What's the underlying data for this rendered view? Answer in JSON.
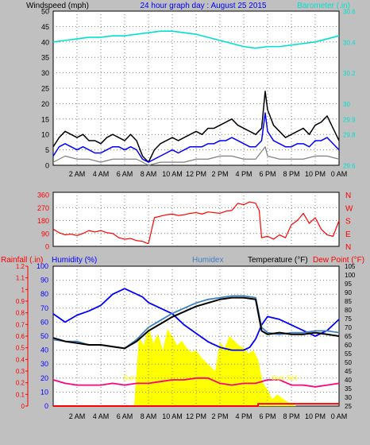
{
  "chart_data": [
    {
      "type": "line",
      "header": {
        "left_label": "Windspeed (mph)",
        "title": "24 hour graph day : August 25 2015",
        "right_label": "Barometer (.in)"
      },
      "left_axis": {
        "ylim": [
          0,
          50
        ],
        "ticks": [
          "0",
          "5",
          "10",
          "15",
          "20",
          "25",
          "30",
          "35",
          "40",
          "45",
          "50"
        ]
      },
      "right_axis": {
        "ylim": [
          29.6,
          30.6
        ],
        "ticks": [
          "29.6",
          "29.8",
          "29.9",
          "30",
          "30.2",
          "30.4",
          "30.6"
        ]
      },
      "x_ticks": [
        "2 AM",
        "4 AM",
        "6 AM",
        "8 AM",
        "10 AM",
        "12 PM",
        "2 PM",
        "4 PM",
        "6 PM",
        "8 PM",
        "10 PM",
        "0 AM"
      ],
      "x_range_hours": [
        0,
        24
      ],
      "series": [
        {
          "name": "Barometer",
          "color": "#00e0d0",
          "axis": "right",
          "x": [
            0,
            1,
            2,
            3,
            4,
            5,
            6,
            7,
            8,
            9,
            10,
            11,
            12,
            13,
            14,
            15,
            16,
            17,
            18,
            19,
            20,
            21,
            22,
            23,
            24
          ],
          "values": [
            30.4,
            30.41,
            30.42,
            30.43,
            30.43,
            30.44,
            30.44,
            30.45,
            30.46,
            30.47,
            30.47,
            30.46,
            30.45,
            30.43,
            30.41,
            30.39,
            30.37,
            30.36,
            30.37,
            30.37,
            30.38,
            30.39,
            30.4,
            30.42,
            30.44
          ]
        },
        {
          "name": "Wind gust",
          "color": "#000000",
          "axis": "left",
          "x": [
            0,
            0.5,
            1,
            1.5,
            2,
            2.5,
            3,
            3.5,
            4,
            4.5,
            5,
            5.5,
            6,
            6.5,
            7,
            7.5,
            8,
            8.5,
            9,
            9.5,
            10,
            10.5,
            11,
            11.5,
            12,
            12.5,
            13,
            13.5,
            14,
            14.5,
            15,
            15.5,
            16,
            16.5,
            17,
            17.5,
            17.8,
            18,
            18.5,
            19,
            19.5,
            20,
            20.5,
            21,
            21.5,
            22,
            22.5,
            23,
            23.5,
            24
          ],
          "values": [
            6,
            9,
            11,
            10,
            9,
            10,
            8,
            8,
            7,
            9,
            10,
            9,
            8,
            10,
            8,
            3,
            1,
            5,
            7,
            8,
            9,
            8,
            9,
            10,
            11,
            10,
            12,
            12,
            13,
            14,
            15,
            13,
            12,
            11,
            10,
            12,
            24,
            18,
            13,
            11,
            9,
            10,
            11,
            12,
            10,
            13,
            14,
            16,
            12,
            8
          ]
        },
        {
          "name": "Wind speed",
          "color": "#0000ff",
          "axis": "left",
          "x": [
            0,
            0.5,
            1,
            1.5,
            2,
            2.5,
            3,
            3.5,
            4,
            4.5,
            5,
            5.5,
            6,
            6.5,
            7,
            7.5,
            8,
            8.5,
            9,
            9.5,
            10,
            10.5,
            11,
            11.5,
            12,
            12.5,
            13,
            13.5,
            14,
            14.5,
            15,
            15.5,
            16,
            16.5,
            17,
            17.5,
            17.8,
            18,
            18.5,
            19,
            19.5,
            20,
            20.5,
            21,
            21.5,
            22,
            22.5,
            23,
            23.5,
            24
          ],
          "values": [
            3,
            6,
            7,
            6,
            5,
            6,
            5,
            4,
            4,
            5,
            6,
            6,
            5,
            6,
            5,
            2,
            1,
            2,
            3,
            4,
            5,
            4,
            5,
            6,
            6,
            6,
            7,
            7,
            8,
            8,
            9,
            8,
            7,
            6,
            6,
            8,
            17,
            11,
            8,
            7,
            6,
            6,
            7,
            7,
            6,
            8,
            8,
            9,
            7,
            5
          ]
        },
        {
          "name": "Wind average",
          "color": "#808080",
          "axis": "left",
          "x": [
            0,
            1,
            2,
            3,
            4,
            5,
            6,
            7,
            8,
            9,
            10,
            11,
            12,
            13,
            14,
            15,
            16,
            17,
            17.8,
            18,
            19,
            20,
            21,
            22,
            23,
            24
          ],
          "values": [
            1,
            3,
            2,
            2,
            1,
            2,
            2,
            2,
            0,
            1,
            1,
            1,
            2,
            2,
            3,
            3,
            2,
            2,
            6,
            3,
            2,
            2,
            2,
            3,
            3,
            2
          ]
        }
      ]
    },
    {
      "type": "line",
      "right_letters": [
        "N",
        "W",
        "S",
        "E",
        "N"
      ],
      "ylim": [
        0,
        360
      ],
      "ticks": [
        "0",
        "90",
        "180",
        "270",
        "360"
      ],
      "x_range_hours": [
        0,
        24
      ],
      "series": [
        {
          "name": "Wind direction",
          "color": "#ff0000",
          "x": [
            0,
            0.5,
            1,
            1.5,
            2,
            2.5,
            3,
            3.5,
            4,
            4.5,
            5,
            5.5,
            6,
            6.5,
            7,
            7.5,
            7.9,
            8,
            8.5,
            9,
            9.5,
            10,
            10.5,
            11,
            11.5,
            12,
            12.5,
            13,
            13.5,
            14,
            14.5,
            15,
            15.5,
            16,
            16.5,
            17,
            17.3,
            17.5,
            18,
            18.5,
            19,
            19.5,
            20,
            20.5,
            21,
            21.5,
            22,
            22.5,
            23,
            23.5,
            24
          ],
          "values": [
            120,
            95,
            80,
            85,
            75,
            90,
            110,
            100,
            110,
            95,
            90,
            60,
            50,
            55,
            40,
            35,
            20,
            20,
            200,
            210,
            220,
            225,
            215,
            220,
            230,
            235,
            225,
            240,
            235,
            230,
            245,
            250,
            300,
            290,
            310,
            300,
            250,
            60,
            70,
            50,
            80,
            60,
            150,
            180,
            230,
            160,
            200,
            120,
            80,
            70,
            180
          ]
        }
      ]
    },
    {
      "type": "line",
      "header": {
        "rainfall_label": "Rainfall (.in)",
        "humidity_label": "Humidity (%)",
        "humidex_label": "Humidex",
        "temperature_label": "Temperature (°F)",
        "dewpoint_label": "Dew Point (°F)"
      },
      "humidity_axis": {
        "ylim": [
          0,
          100
        ],
        "ticks": [
          "0",
          "10",
          "20",
          "30",
          "40",
          "50",
          "60",
          "70",
          "80",
          "90",
          "100"
        ]
      },
      "rain_axis": {
        "ylim": [
          0,
          1.2
        ],
        "ticks": [
          "0",
          "0.1",
          "0.2",
          "0.3",
          "0.4",
          "0.5",
          "0.6",
          "0.7",
          "0.8",
          "0.9",
          "1",
          "1.1",
          "1.2"
        ]
      },
      "temp_axis": {
        "ylim": [
          25,
          105
        ],
        "ticks": [
          "25",
          "30",
          "35",
          "40",
          "45",
          "50",
          "55",
          "60",
          "65",
          "70",
          "75",
          "80",
          "85",
          "90",
          "95",
          "100",
          "105"
        ]
      },
      "annotations": [
        {
          "text": "Sun",
          "x": 6.4,
          "value": 0.22
        },
        {
          "text": "Sun Set",
          "x": 19.4,
          "value": 0.22
        }
      ],
      "x_range_hours": [
        0,
        24
      ],
      "series": [
        {
          "name": "Humidity",
          "color": "#0000ff",
          "axis": "humidity",
          "x": [
            0,
            1,
            2,
            3,
            4,
            5,
            6,
            7,
            7.5,
            8,
            9,
            10,
            11,
            12,
            13,
            14,
            15,
            16,
            16.5,
            17,
            17.5,
            18,
            19,
            20,
            21,
            22,
            23,
            24
          ],
          "values": [
            66,
            60,
            65,
            68,
            72,
            80,
            84,
            80,
            78,
            74,
            70,
            66,
            58,
            52,
            46,
            42,
            40,
            40,
            42,
            48,
            58,
            64,
            62,
            58,
            54,
            50,
            54,
            62
          ]
        },
        {
          "name": "Humidex",
          "color": "#4080c0",
          "axis": "temp",
          "x": [
            0,
            1,
            2,
            3,
            4,
            5,
            6,
            7,
            8,
            9,
            10,
            11,
            12,
            13,
            14,
            15,
            16,
            17,
            17.5,
            18,
            19,
            20,
            21,
            22,
            23,
            24
          ],
          "values": [
            63,
            62,
            62,
            60,
            60,
            59,
            58,
            63,
            70,
            74,
            78,
            81,
            84,
            86,
            87,
            88,
            88,
            87,
            70,
            67,
            66,
            67,
            67,
            68,
            68,
            67
          ]
        },
        {
          "name": "Temperature",
          "color": "#000000",
          "axis": "temp",
          "x": [
            0,
            1,
            2,
            3,
            4,
            5,
            6,
            7,
            8,
            9,
            10,
            11,
            12,
            13,
            14,
            15,
            16,
            17,
            17.5,
            18,
            19,
            20,
            21,
            22,
            23,
            24
          ],
          "values": [
            64,
            62,
            61,
            60,
            60,
            59,
            58,
            62,
            68,
            72,
            76,
            79,
            82,
            84,
            86,
            87,
            87,
            86,
            68,
            66,
            67,
            66,
            66,
            67,
            66,
            65
          ]
        },
        {
          "name": "Dew Point",
          "color": "#ff0080",
          "axis": "temp",
          "x": [
            0,
            1,
            2,
            3,
            4,
            5,
            6,
            7,
            8,
            9,
            10,
            11,
            12,
            13,
            14,
            15,
            16,
            17,
            18,
            19,
            20,
            21,
            22,
            23,
            24
          ],
          "values": [
            40,
            38,
            37,
            37,
            37,
            38,
            37,
            38,
            38,
            39,
            40,
            40,
            41,
            41,
            38,
            37,
            38,
            38,
            40,
            40,
            37,
            37,
            36,
            37,
            38
          ]
        },
        {
          "name": "Solar",
          "color": "#ffff00",
          "axis": "rain",
          "x": [
            6.8,
            7.2,
            7.6,
            8,
            8.4,
            8.8,
            9.2,
            9.6,
            10,
            10.4,
            10.8,
            11.2,
            11.6,
            12,
            12.4,
            12.8,
            13.2,
            13.6,
            14,
            14.4,
            14.8,
            15.2,
            15.6,
            16,
            16.4,
            16.8,
            17.2,
            17.6,
            18,
            18.4,
            18.8,
            19.2,
            19.6,
            20,
            20.4
          ],
          "values": [
            0,
            0.6,
            0.52,
            0.68,
            0.54,
            0.62,
            0.48,
            0.66,
            0.6,
            0.52,
            0.56,
            0.5,
            0.46,
            0.48,
            0.42,
            0.38,
            0.34,
            0.3,
            0.55,
            0.5,
            0.6,
            0.56,
            0.52,
            0.5,
            0.45,
            0.48,
            0.4,
            0.2,
            0.14,
            0.06,
            0.1,
            0.07,
            0.04,
            0.02,
            0
          ]
        },
        {
          "name": "Rainfall",
          "color": "#ff0000",
          "axis": "rain",
          "x": [
            0,
            17.2,
            17.2,
            24
          ],
          "values": [
            0,
            0,
            0.02,
            0.02
          ]
        }
      ]
    }
  ]
}
